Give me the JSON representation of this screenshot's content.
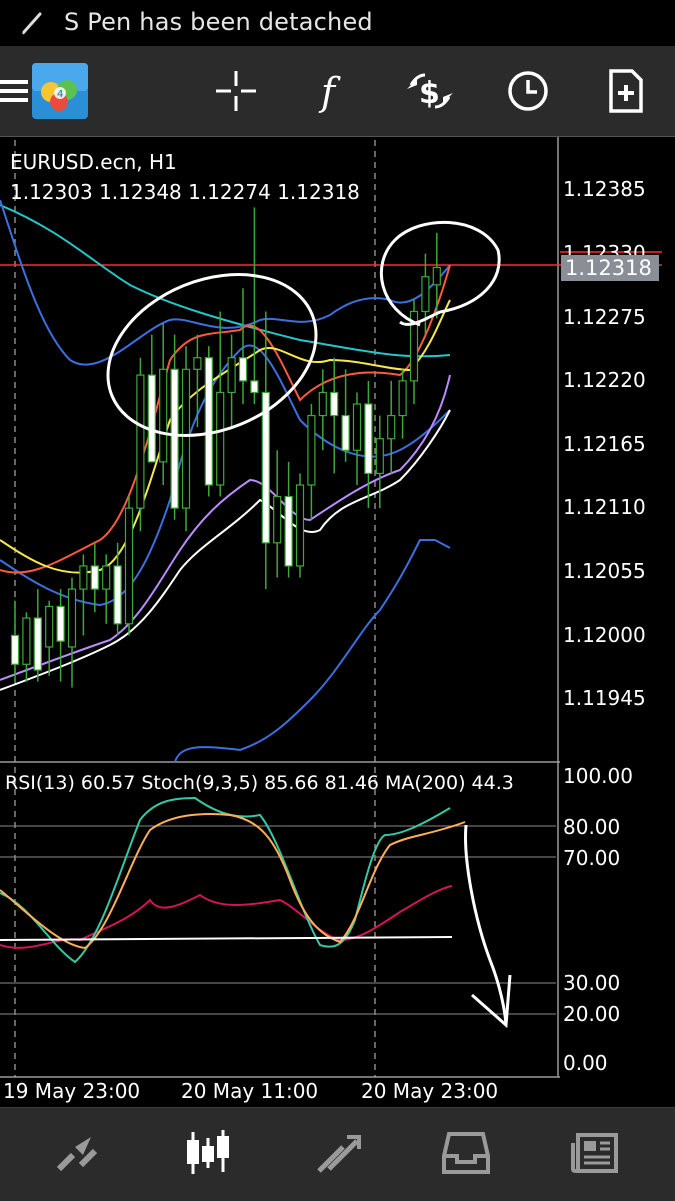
{
  "status_bar": {
    "message": "S Pen has been detached"
  },
  "toolbar": {
    "items": [
      "menu-icon",
      "metatrader-logo",
      "crosshair-icon",
      "indicators-icon",
      "trade-icon",
      "history-clock-icon",
      "new-order-icon"
    ]
  },
  "chart": {
    "symbol_title": "EURUSD.ecn, H1",
    "ohlc": "1.12303 1.12348 1.12274 1.12318",
    "current_price": "1.12318",
    "price_axis": [
      "1.12385",
      "1.12330",
      "1.12275",
      "1.12220",
      "1.12165",
      "1.12110",
      "1.12055",
      "1.12000",
      "1.11945"
    ],
    "indicator_title": "RSI(13) 60.57 Stoch(9,3,5) 85.66 81.46 MA(200) 44.3",
    "indicator_axis": [
      "100.00",
      "80.00",
      "70.00",
      "30.00",
      "20.00",
      "0.00"
    ],
    "time_axis": [
      "19 May 23:00",
      "20 May 11:00",
      "20 May 23:00"
    ]
  },
  "colors": {
    "background": "#000000",
    "bull_candle": "#000000",
    "bear_candle": "#ffffff",
    "wick": "#3ea83a",
    "price_line": "#ff2b2b",
    "rsi": "#d4145a",
    "stoch_main": "#34c9a4",
    "stoch_signal": "#ffb055",
    "panel": "#2b2b2b"
  },
  "bottom_nav": {
    "items": [
      "quotes-icon",
      "chart-icon",
      "trade-icon",
      "history-icon",
      "news-icon"
    ],
    "active": "chart-icon"
  }
}
